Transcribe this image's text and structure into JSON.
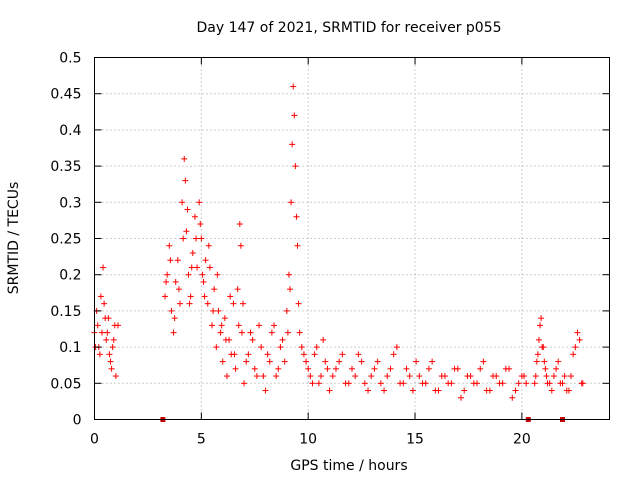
{
  "chart_data": {
    "type": "scatter",
    "title": "Day 147 of 2021, SRMTID for receiver p055",
    "xlabel": "GPS time / hours",
    "ylabel": "SRMTID / TECUs",
    "xlim": [
      0,
      24.1
    ],
    "ylim": [
      0,
      0.5
    ],
    "x_ticks": [
      0,
      5,
      10,
      15,
      20
    ],
    "x_tick_labels": [
      "0",
      "5",
      "10",
      "15",
      "20"
    ],
    "y_ticks": [
      0,
      0.05,
      0.1,
      0.15,
      0.2,
      0.25,
      0.3,
      0.35,
      0.4,
      0.45,
      0.5
    ],
    "y_tick_labels": [
      "0",
      "0.05",
      "0.1",
      "0.15",
      "0.2",
      "0.25",
      "0.3",
      "0.35",
      "0.4",
      "0.45",
      "0.5"
    ],
    "grid": true,
    "marker": "+",
    "color": "#ff0000",
    "gap_marker_color": "#cc0000",
    "gap_markers_x": [
      3.2,
      20.3,
      21.9
    ],
    "series": [
      {
        "name": "SRMTID",
        "x": [
          0.0,
          0.1,
          0.2,
          0.3,
          0.4,
          0.5,
          0.6,
          0.7,
          0.8,
          0.9,
          1.0,
          1.1,
          3.3,
          3.4,
          3.5,
          3.6,
          3.7,
          3.8,
          3.9,
          4.0,
          4.1,
          4.2,
          4.3,
          4.4,
          4.5,
          4.6,
          4.7,
          4.8,
          4.9,
          5.0,
          5.1,
          5.2,
          5.3,
          5.4,
          5.5,
          5.6,
          5.7,
          5.8,
          5.9,
          6.0,
          6.1,
          6.2,
          6.3,
          6.4,
          6.5,
          6.6,
          6.7,
          6.8,
          6.9,
          7.0,
          7.2,
          7.4,
          7.6,
          7.8,
          8.0,
          8.2,
          8.4,
          8.6,
          8.8,
          9.0,
          9.1,
          9.2,
          9.3,
          9.4,
          9.5,
          9.6,
          9.8,
          10.0,
          10.2,
          10.4,
          10.6,
          10.8,
          11.0,
          11.3,
          11.6,
          11.9,
          12.2,
          12.5,
          12.8,
          13.1,
          13.4,
          13.7,
          14.0,
          14.3,
          14.6,
          14.9,
          15.2,
          15.5,
          15.8,
          16.1,
          16.4,
          16.7,
          17.0,
          17.3,
          17.6,
          17.9,
          18.2,
          18.5,
          18.8,
          19.1,
          19.4,
          19.7,
          20.0,
          20.2,
          20.6,
          20.7,
          20.8,
          20.9,
          21.0,
          21.1,
          21.2,
          21.4,
          21.6,
          21.8,
          22.0,
          22.2,
          22.4,
          22.6,
          22.8,
          0.05,
          0.15,
          0.25,
          0.35,
          0.45,
          0.55,
          0.65,
          0.75,
          0.85,
          0.95,
          3.35,
          3.55,
          3.75,
          3.95,
          4.15,
          4.25,
          4.35,
          4.45,
          4.55,
          4.75,
          4.95,
          5.05,
          5.15,
          5.35,
          5.55,
          5.75,
          5.95,
          6.15,
          6.35,
          6.55,
          6.75,
          6.85,
          6.95,
          7.1,
          7.3,
          7.5,
          7.7,
          7.9,
          8.1,
          8.3,
          8.5,
          8.7,
          8.9,
          9.05,
          9.15,
          9.25,
          9.35,
          9.45,
          9.55,
          9.7,
          9.9,
          10.1,
          10.3,
          10.5,
          10.7,
          10.9,
          11.15,
          11.45,
          11.75,
          12.05,
          12.35,
          12.65,
          12.95,
          13.25,
          13.55,
          13.85,
          14.15,
          14.45,
          14.75,
          15.05,
          15.35,
          15.65,
          15.95,
          16.25,
          16.55,
          16.85,
          17.15,
          17.45,
          17.75,
          18.05,
          18.35,
          18.65,
          18.95,
          19.25,
          19.55,
          19.85,
          20.1,
          20.65,
          20.75,
          20.85,
          20.95,
          21.05,
          21.15,
          21.3,
          21.5,
          21.7,
          21.9,
          22.1,
          22.3,
          22.5,
          22.7,
          22.85
        ],
        "y": [
          0.12,
          0.15,
          0.1,
          0.17,
          0.21,
          0.14,
          0.12,
          0.09,
          0.07,
          0.11,
          0.06,
          0.13,
          0.17,
          0.2,
          0.24,
          0.15,
          0.12,
          0.19,
          0.22,
          0.16,
          0.3,
          0.36,
          0.26,
          0.2,
          0.17,
          0.23,
          0.28,
          0.21,
          0.3,
          0.25,
          0.19,
          0.22,
          0.16,
          0.21,
          0.13,
          0.18,
          0.1,
          0.15,
          0.12,
          0.08,
          0.14,
          0.06,
          0.11,
          0.09,
          0.16,
          0.07,
          0.18,
          0.27,
          0.12,
          0.05,
          0.09,
          0.11,
          0.06,
          0.1,
          0.04,
          0.08,
          0.13,
          0.07,
          0.11,
          0.15,
          0.2,
          0.3,
          0.46,
          0.35,
          0.24,
          0.12,
          0.09,
          0.07,
          0.05,
          0.1,
          0.06,
          0.08,
          0.04,
          0.07,
          0.09,
          0.05,
          0.06,
          0.08,
          0.04,
          0.07,
          0.05,
          0.06,
          0.09,
          0.05,
          0.07,
          0.04,
          0.06,
          0.05,
          0.08,
          0.04,
          0.06,
          0.05,
          0.07,
          0.04,
          0.06,
          0.05,
          0.08,
          0.04,
          0.06,
          0.05,
          0.07,
          0.04,
          0.06,
          0.05,
          0.05,
          0.08,
          0.11,
          0.14,
          0.1,
          0.07,
          0.05,
          0.04,
          0.07,
          0.05,
          0.06,
          0.04,
          0.09,
          0.12,
          0.05,
          0.1,
          0.13,
          0.09,
          0.12,
          0.16,
          0.11,
          0.14,
          0.08,
          0.1,
          0.13,
          0.19,
          0.22,
          0.14,
          0.18,
          0.25,
          0.33,
          0.29,
          0.16,
          0.21,
          0.25,
          0.27,
          0.2,
          0.17,
          0.24,
          0.15,
          0.2,
          0.13,
          0.11,
          0.17,
          0.09,
          0.13,
          0.24,
          0.16,
          0.08,
          0.12,
          0.07,
          0.13,
          0.06,
          0.09,
          0.12,
          0.06,
          0.1,
          0.08,
          0.12,
          0.18,
          0.38,
          0.42,
          0.28,
          0.16,
          0.1,
          0.08,
          0.06,
          0.09,
          0.05,
          0.11,
          0.07,
          0.06,
          0.08,
          0.05,
          0.07,
          0.09,
          0.05,
          0.06,
          0.08,
          0.04,
          0.07,
          0.1,
          0.05,
          0.06,
          0.08,
          0.05,
          0.07,
          0.04,
          0.06,
          0.05,
          0.07,
          0.03,
          0.06,
          0.05,
          0.07,
          0.04,
          0.06,
          0.05,
          0.07,
          0.03,
          0.05,
          0.06,
          0.06,
          0.09,
          0.13,
          0.1,
          0.08,
          0.06,
          0.05,
          0.06,
          0.08,
          0.05,
          0.04,
          0.06,
          0.1,
          0.11,
          0.05
        ]
      }
    ]
  }
}
